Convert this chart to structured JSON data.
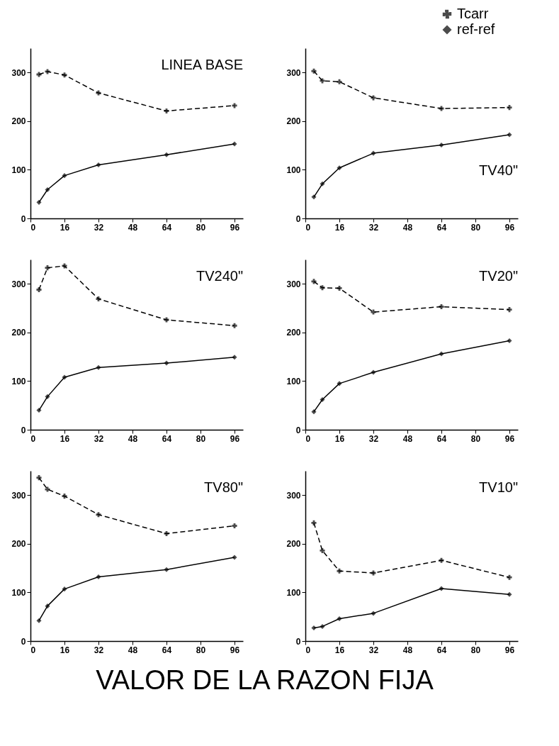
{
  "chart_data": [
    {
      "type": "line",
      "title": "LINEA BASE",
      "x": [
        4,
        8,
        16,
        32,
        64,
        96
      ],
      "xlim": [
        0,
        100
      ],
      "xticks": [
        0,
        16,
        32,
        48,
        64,
        80,
        96
      ],
      "ylim": [
        0,
        350
      ],
      "yticks": [
        0,
        100,
        200,
        300
      ],
      "series": [
        {
          "color": "#000000",
          "line_style": "dashed",
          "marker": "cross",
          "values": [
            296,
            302,
            295,
            258,
            221,
            232
          ]
        },
        {
          "color": "#000000",
          "line_style": "solid",
          "marker": "diamond",
          "values": [
            33,
            59,
            88,
            110,
            131,
            153
          ]
        }
      ]
    },
    {
      "type": "line",
      "title": "TV40\"",
      "x": [
        4,
        8,
        16,
        32,
        64,
        96
      ],
      "xlim": [
        0,
        100
      ],
      "xticks": [
        0,
        16,
        32,
        48,
        64,
        80,
        96
      ],
      "ylim": [
        0,
        350
      ],
      "yticks": [
        0,
        100,
        200,
        300
      ],
      "legend": "top right",
      "series": [
        {
          "name": "Tcarr",
          "color": "#000000",
          "line_style": "dashed",
          "marker": "cross",
          "values": [
            303,
            283,
            281,
            248,
            226,
            228
          ]
        },
        {
          "name": "ref-ref",
          "color": "#000000",
          "line_style": "solid",
          "marker": "diamond",
          "values": [
            44,
            71,
            104,
            134,
            151,
            172
          ]
        }
      ]
    },
    {
      "type": "line",
      "title": "TV240\"",
      "x": [
        4,
        8,
        16,
        32,
        64,
        96
      ],
      "xlim": [
        0,
        100
      ],
      "xticks": [
        0,
        16,
        32,
        48,
        64,
        80,
        96
      ],
      "ylim": [
        0,
        350
      ],
      "yticks": [
        0,
        100,
        200,
        300
      ],
      "series": [
        {
          "color": "#000000",
          "line_style": "dashed",
          "marker": "cross",
          "values": [
            288,
            333,
            337,
            269,
            226,
            214
          ]
        },
        {
          "color": "#000000",
          "line_style": "solid",
          "marker": "diamond",
          "values": [
            40,
            68,
            108,
            128,
            137,
            149
          ]
        }
      ]
    },
    {
      "type": "line",
      "title": "TV20\"",
      "x": [
        4,
        8,
        16,
        32,
        64,
        96
      ],
      "xlim": [
        0,
        100
      ],
      "xticks": [
        0,
        16,
        32,
        48,
        64,
        80,
        96
      ],
      "ylim": [
        0,
        350
      ],
      "yticks": [
        0,
        100,
        200,
        300
      ],
      "series": [
        {
          "color": "#000000",
          "line_style": "dashed",
          "marker": "cross",
          "values": [
            305,
            292,
            291,
            242,
            253,
            247
          ]
        },
        {
          "color": "#000000",
          "line_style": "solid",
          "marker": "diamond",
          "values": [
            37,
            62,
            95,
            118,
            156,
            183
          ]
        }
      ]
    },
    {
      "type": "line",
      "title": "TV80\"",
      "x": [
        4,
        8,
        16,
        32,
        64,
        96
      ],
      "xlim": [
        0,
        100
      ],
      "xticks": [
        0,
        16,
        32,
        48,
        64,
        80,
        96
      ],
      "ylim": [
        0,
        350
      ],
      "yticks": [
        0,
        100,
        200,
        300
      ],
      "series": [
        {
          "color": "#000000",
          "line_style": "dashed",
          "marker": "cross",
          "values": [
            336,
            312,
            298,
            260,
            221,
            237
          ]
        },
        {
          "color": "#000000",
          "line_style": "solid",
          "marker": "diamond",
          "values": [
            42,
            72,
            107,
            132,
            147,
            172
          ]
        }
      ]
    },
    {
      "type": "line",
      "title": "TV10\"",
      "x": [
        4,
        8,
        16,
        32,
        64,
        96
      ],
      "xlim": [
        0,
        100
      ],
      "xticks": [
        0,
        16,
        32,
        48,
        64,
        80,
        96
      ],
      "ylim": [
        0,
        350
      ],
      "yticks": [
        0,
        100,
        200,
        300
      ],
      "annotations": [
        "VALOR DE LA RAZON FIJA"
      ],
      "series": [
        {
          "color": "#000000",
          "line_style": "dashed",
          "marker": "cross",
          "values": [
            243,
            186,
            144,
            140,
            166,
            131
          ]
        },
        {
          "color": "#000000",
          "line_style": "solid",
          "marker": "diamond",
          "values": [
            27,
            30,
            46,
            57,
            108,
            96
          ]
        }
      ]
    }
  ]
}
